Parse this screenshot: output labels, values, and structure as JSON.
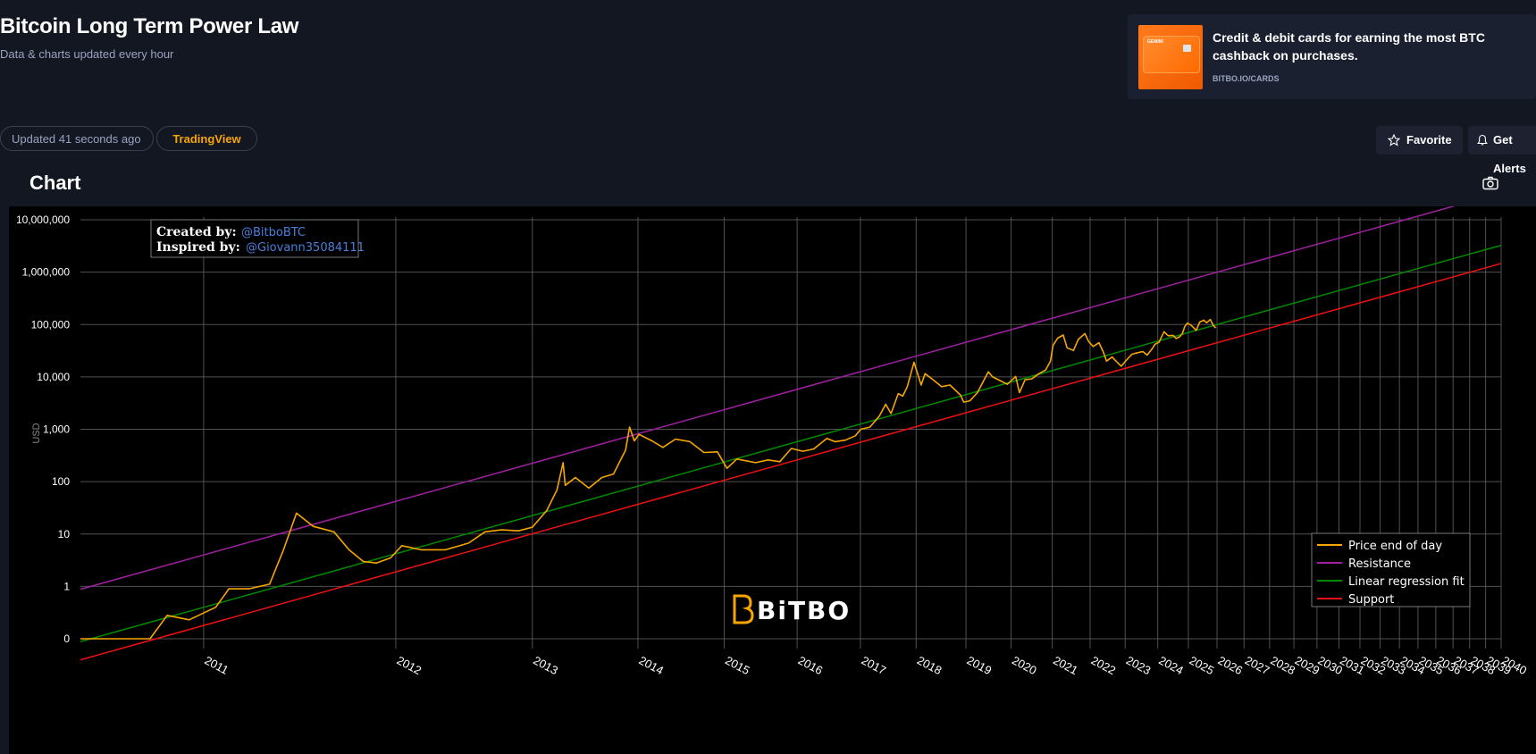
{
  "header": {
    "title": "Bitcoin Long Term Power Law",
    "subtitle": "Data & charts updated every hour"
  },
  "ad": {
    "title": "Credit & debit cards for earning the most BTC cashback on purchases.",
    "link": "BITBO.IO/CARDS",
    "brand_text": "GEMINI"
  },
  "status": {
    "updated": "Updated 41 seconds ago",
    "tradingview": "TradingView"
  },
  "actions": {
    "favorite": "Favorite",
    "alert": "Get Alerts"
  },
  "section": {
    "title": "Chart"
  },
  "annotation": {
    "created_label": "Created by:",
    "created_value": "@BitboBTC",
    "inspired_label": "Inspired by:",
    "inspired_value": "@Giovann35084111"
  },
  "watermark": "BiTBO",
  "colors": {
    "price": "#f7a600",
    "resistance": "#a020a0",
    "regression": "#008a00",
    "support": "#ee1111",
    "accent": "#f7a600",
    "link": "#4a7fdc"
  },
  "chart_data": {
    "type": "line",
    "title": "",
    "xlabel": "",
    "ylabel": "USD",
    "yscale": "log",
    "xscale": "log (days since genesis)",
    "ylim": [
      0.1,
      10000000
    ],
    "y_tick_values": [
      0.1,
      1,
      10,
      100,
      1000,
      10000,
      100000,
      1000000,
      10000000
    ],
    "y_tick_labels": [
      "0",
      "1",
      "10",
      "100",
      "1,000",
      "10,000",
      "100,000",
      "1,000,000",
      "10,000,000"
    ],
    "x_tick_labels": [
      "2011",
      "2012",
      "2013",
      "2014",
      "2015",
      "2016",
      "2017",
      "2018",
      "2019",
      "2020",
      "2021",
      "2022",
      "2023",
      "2024",
      "2025",
      "2026",
      "2027",
      "2028",
      "2029",
      "2030",
      "2031",
      "2032",
      "2033",
      "2034",
      "2035",
      "2036",
      "2037",
      "2038",
      "2039",
      "2040"
    ],
    "xlim": [
      "2010-07-18",
      "2040-01-01"
    ],
    "legend": {
      "position": "bottom-right",
      "entries": [
        "Price end of day",
        "Resistance",
        "Linear regression fit",
        "Support"
      ]
    },
    "series": [
      {
        "name": "Price end of day",
        "dates": [
          "2010-07-18",
          "2010-09-01",
          "2010-10-15",
          "2010-11-08",
          "2010-12-10",
          "2011-01-20",
          "2011-02-10",
          "2011-03-15",
          "2011-04-20",
          "2011-05-15",
          "2011-06-08",
          "2011-07-10",
          "2011-08-20",
          "2011-09-20",
          "2011-10-20",
          "2011-11-18",
          "2011-12-20",
          "2012-01-15",
          "2012-03-01",
          "2012-05-01",
          "2012-07-01",
          "2012-08-15",
          "2012-10-01",
          "2012-11-20",
          "2013-01-01",
          "2013-02-15",
          "2013-03-20",
          "2013-04-09",
          "2013-04-16",
          "2013-05-20",
          "2013-07-05",
          "2013-08-20",
          "2013-10-01",
          "2013-11-15",
          "2013-11-30",
          "2013-12-18",
          "2014-01-05",
          "2014-02-25",
          "2014-04-10",
          "2014-06-01",
          "2014-08-01",
          "2014-10-01",
          "2014-12-01",
          "2015-01-14",
          "2015-03-01",
          "2015-06-01",
          "2015-08-01",
          "2015-10-01",
          "2015-12-01",
          "2016-02-01",
          "2016-04-01",
          "2016-06-15",
          "2016-08-01",
          "2016-10-01",
          "2016-12-01",
          "2017-01-03",
          "2017-03-01",
          "2017-05-01",
          "2017-06-10",
          "2017-07-15",
          "2017-09-01",
          "2017-10-01",
          "2017-11-01",
          "2017-12-17",
          "2018-02-05",
          "2018-03-05",
          "2018-05-01",
          "2018-07-01",
          "2018-09-01",
          "2018-11-20",
          "2018-12-15",
          "2019-02-01",
          "2019-04-01",
          "2019-06-26",
          "2019-08-01",
          "2019-10-01",
          "2019-12-01",
          "2020-02-10",
          "2020-03-13",
          "2020-05-01",
          "2020-07-01",
          "2020-09-01",
          "2020-11-01",
          "2020-12-15",
          "2021-01-08",
          "2021-02-20",
          "2021-04-14",
          "2021-05-20",
          "2021-07-20",
          "2021-09-06",
          "2021-11-10",
          "2021-12-15",
          "2022-02-01",
          "2022-04-01",
          "2022-05-15",
          "2022-06-18",
          "2022-08-15",
          "2022-10-01",
          "2022-11-21",
          "2023-01-15",
          "2023-03-15",
          "2023-05-01",
          "2023-07-15",
          "2023-09-01",
          "2023-10-25",
          "2023-12-01",
          "2024-01-15",
          "2024-03-14",
          "2024-05-01",
          "2024-07-01",
          "2024-08-05",
          "2024-09-15",
          "2024-10-20",
          "2024-11-15",
          "2024-12-17",
          "2025-02-01",
          "2025-03-15",
          "2025-04-08",
          "2025-05-22",
          "2025-07-14",
          "2025-08-20",
          "2025-10-06",
          "2025-11-15",
          "2025-12-15"
        ],
        "values": [
          0.06,
          0.06,
          0.1,
          0.28,
          0.23,
          0.4,
          0.9,
          0.9,
          1.1,
          5,
          25,
          14,
          11,
          5,
          3,
          2.8,
          3.5,
          6,
          5,
          5,
          6.7,
          11,
          12,
          11.5,
          13.5,
          28,
          70,
          230,
          85,
          120,
          75,
          120,
          140,
          400,
          1100,
          600,
          800,
          600,
          450,
          650,
          580,
          360,
          370,
          180,
          270,
          230,
          260,
          240,
          430,
          380,
          420,
          670,
          580,
          620,
          750,
          1000,
          1100,
          1800,
          3000,
          2000,
          4800,
          4300,
          6500,
          19000,
          7000,
          11500,
          8800,
          6500,
          7000,
          4500,
          3300,
          3500,
          5000,
          12500,
          10000,
          8500,
          7200,
          10200,
          5000,
          8800,
          9200,
          11500,
          13500,
          20000,
          40000,
          55000,
          63000,
          36000,
          32000,
          52000,
          67000,
          48000,
          38000,
          45000,
          30000,
          20000,
          24000,
          19500,
          16000,
          21000,
          27000,
          28500,
          30500,
          26000,
          34000,
          42000,
          46000,
          73000,
          61000,
          62000,
          54000,
          58000,
          67000,
          90000,
          106000,
          98000,
          85000,
          77000,
          111000,
          121000,
          108000,
          125000,
          95000,
          86000
        ]
      },
      {
        "name": "Resistance",
        "power_law": {
          "a": 1e-16,
          "b": 5.8
        }
      },
      {
        "name": "Linear regression fit",
        "power_law": {
          "a": 1e-17,
          "b": 5.8
        }
      },
      {
        "name": "Support",
        "power_law": {
          "a": 4.5e-18,
          "b": 5.8
        }
      }
    ]
  }
}
